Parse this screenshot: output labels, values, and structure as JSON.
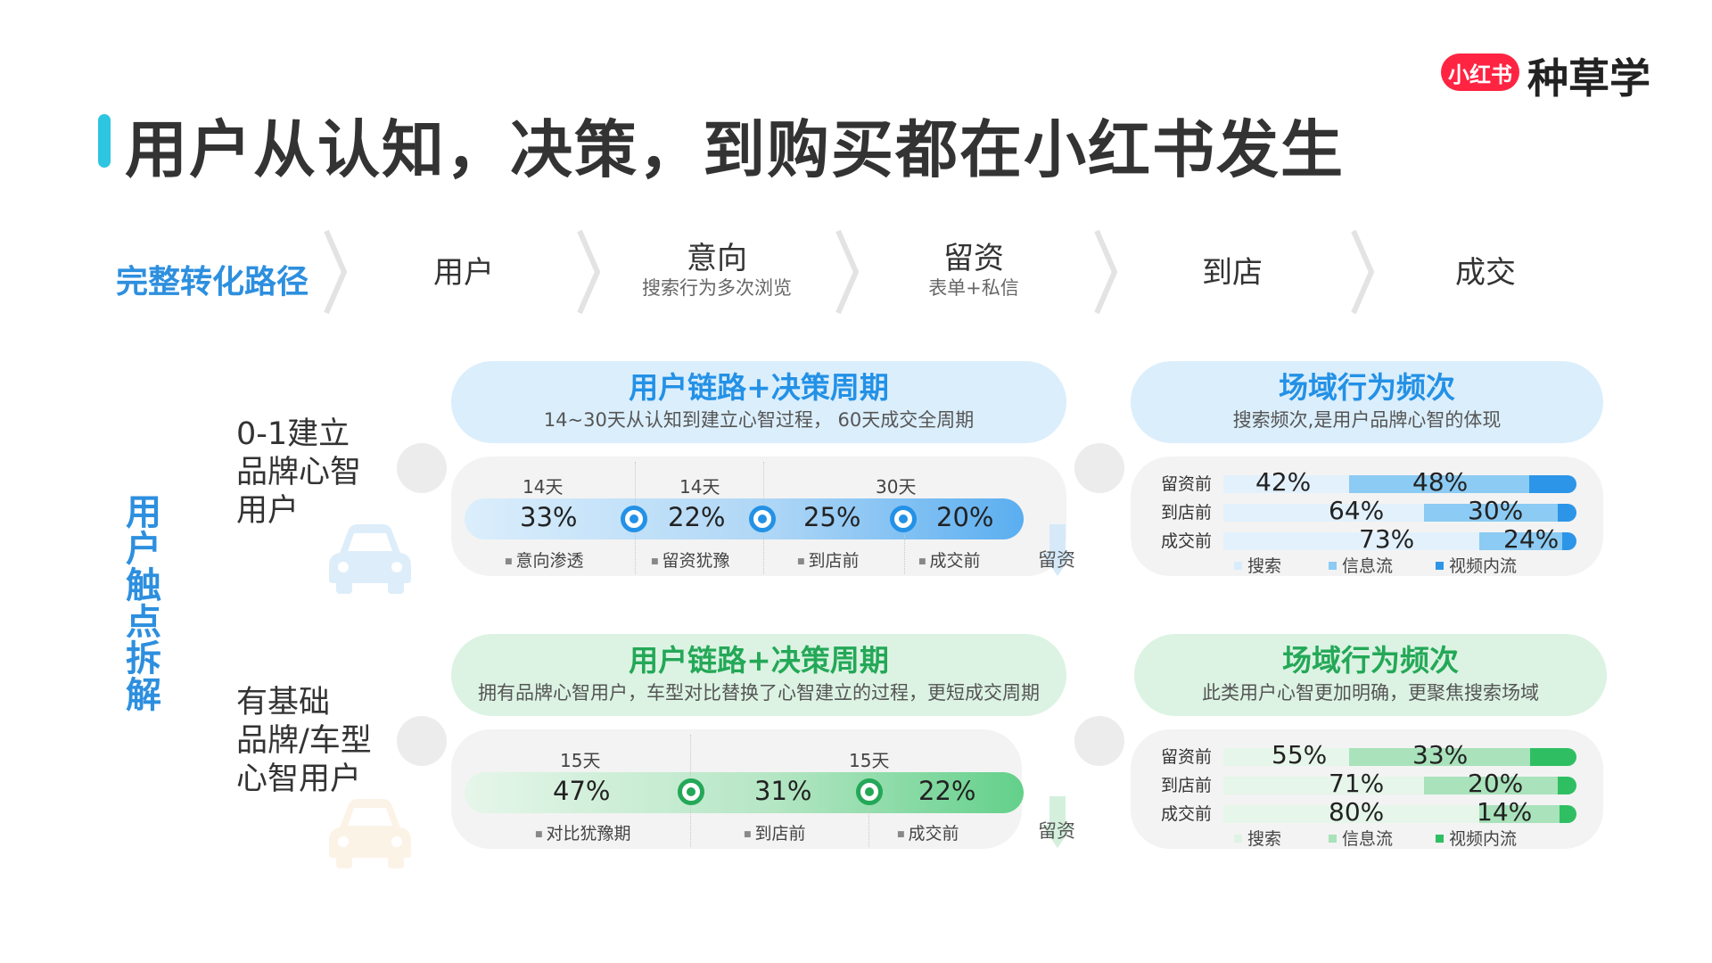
{
  "brand": {
    "badge": "小红书",
    "name": "种草学"
  },
  "title": "用户从认知，决策，到购买都在小红书发生",
  "path": {
    "label": "完整转化路径",
    "steps": [
      {
        "name": "用户",
        "sub": ""
      },
      {
        "name": "意向",
        "sub": "搜索行为多次浏览"
      },
      {
        "name": "留资",
        "sub": "表单+私信"
      },
      {
        "name": "到店",
        "sub": ""
      },
      {
        "name": "成交",
        "sub": ""
      }
    ]
  },
  "side_label": "用户触点拆解",
  "segments": [
    {
      "label_lines": [
        "0-1建立",
        "品牌心智",
        "用户"
      ],
      "chain": {
        "title": "用户链路+决策周期",
        "subtitle": "14~30天从认知到建立心智过程， 60天成交全周期",
        "periods": [
          "14天",
          "14天",
          "30天"
        ],
        "percents": [
          "33%",
          "22%",
          "25%",
          "20%"
        ],
        "stages": [
          "意向渗透",
          "留资犹豫",
          "到店前",
          "成交前"
        ],
        "arrow_label": "留资"
      },
      "frequency": {
        "title": "场域行为频次",
        "subtitle": "搜索频次,是用户品牌心智的体现",
        "rows": [
          {
            "label": "留资前",
            "search": "42%",
            "feed": "48%"
          },
          {
            "label": "到店前",
            "search": "64%",
            "feed": "30%"
          },
          {
            "label": "成交前",
            "search": "73%",
            "feed": "24%"
          }
        ],
        "legend": [
          "搜索",
          "信息流",
          "视频内流"
        ]
      }
    },
    {
      "label_lines": [
        "有基础",
        "品牌/车型",
        "心智用户"
      ],
      "chain": {
        "title": "用户链路+决策周期",
        "subtitle": "拥有品牌心智用户，车型对比替换了心智建立的过程，更短成交周期",
        "periods": [
          "15天",
          "15天"
        ],
        "percents": [
          "47%",
          "31%",
          "22%"
        ],
        "stages": [
          "对比犹豫期",
          "到店前",
          "成交前"
        ],
        "arrow_label": "留资"
      },
      "frequency": {
        "title": "场域行为频次",
        "subtitle": "此类用户心智更加明确，更聚焦搜索场域",
        "rows": [
          {
            "label": "留资前",
            "search": "55%",
            "feed": "33%"
          },
          {
            "label": "到店前",
            "search": "71%",
            "feed": "20%"
          },
          {
            "label": "成交前",
            "search": "80%",
            "feed": "14%"
          }
        ],
        "legend": [
          "搜索",
          "信息流",
          "视频内流"
        ]
      }
    }
  ],
  "icons": [
    "chevron-right-icon",
    "car-icon",
    "down-arrow-icon"
  ],
  "colors": {
    "brand_red": "#ff2442",
    "accent_blue": "#2391e6",
    "accent_green": "#24a857",
    "title_bar": "#2ec5e0"
  }
}
